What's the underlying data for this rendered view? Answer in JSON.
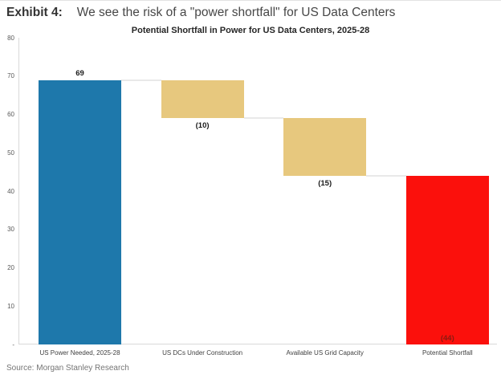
{
  "header": {
    "exhibit_label": "Exhibit 4:",
    "title": "We see the risk of a \"power shortfall\" for US Data Centers"
  },
  "footer": {
    "source": "Source: Morgan Stanley Research"
  },
  "colors": {
    "bar_blue": "#1e78ab",
    "bar_tan": "#e7c87e",
    "bar_red": "#fb100c",
    "axis_line": "#d9d9d9",
    "value_label_dark": "#1a1a1a",
    "value_label_on_red": "#8b1a10"
  },
  "chart_data": {
    "type": "bar",
    "subtype": "waterfall",
    "title": "Potential Shortfall in Power for US Data Centers, 2025-28",
    "xlabel": "",
    "ylabel": "",
    "ylim": [
      0,
      80
    ],
    "grid": false,
    "legend": false,
    "y_ticks": [
      "80",
      "70",
      "60",
      "50",
      "40",
      "30",
      "20",
      "10",
      "-"
    ],
    "categories": [
      "US Power Needed, 2025-28",
      "US DCs Under Construction",
      "Available US Grid Capacity",
      "Potential Shortfall"
    ],
    "values": [
      69,
      -10,
      -15,
      -44
    ],
    "bars": [
      {
        "name": "us-power-needed-2025-28",
        "start": 0,
        "end": 69,
        "label": "69",
        "label_pos": "above",
        "color": "#1e78ab",
        "label_color": "#1a1a1a"
      },
      {
        "name": "us-dcs-under-construction",
        "start": 59,
        "end": 69,
        "label": "(10)",
        "label_pos": "below",
        "color": "#e7c87e",
        "label_color": "#1a1a1a"
      },
      {
        "name": "available-us-grid-capacity",
        "start": 44,
        "end": 59,
        "label": "(15)",
        "label_pos": "below",
        "color": "#e7c87e",
        "label_color": "#1a1a1a"
      },
      {
        "name": "potential-shortfall",
        "start": 0,
        "end": 44,
        "label": "(44)",
        "label_pos": "inside-bottom",
        "color": "#fb100c",
        "label_color": "#8b1a10"
      }
    ],
    "connectors": [
      {
        "at": 69,
        "from": 0,
        "to": 1
      },
      {
        "at": 59,
        "from": 1,
        "to": 2
      },
      {
        "at": 44,
        "from": 2,
        "to": 3
      }
    ]
  }
}
